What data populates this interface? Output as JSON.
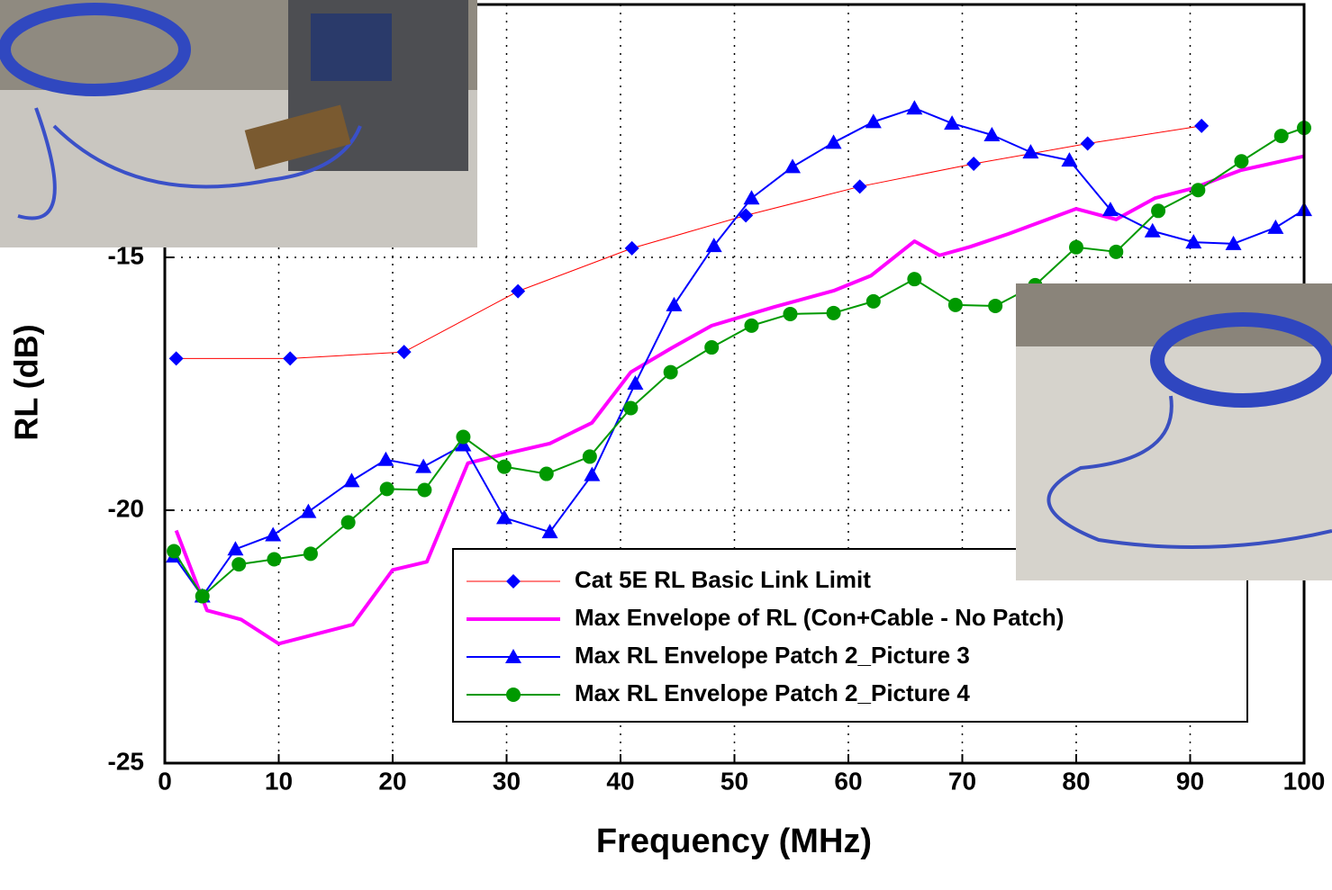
{
  "chart_data": {
    "type": "line",
    "x_label": "Frequency (MHz)",
    "y_label": "RL (dB)",
    "xlim": [
      0,
      100
    ],
    "xticks": [
      0,
      10,
      20,
      30,
      40,
      50,
      60,
      70,
      80,
      90,
      100
    ],
    "ylim": [
      -25,
      -10
    ],
    "yticks": [
      -25,
      -20,
      -15
    ],
    "grid": true,
    "series": [
      {
        "name": "Cat 5E RL Basic Link Limit",
        "color": "#ff0000",
        "marker": "diamond",
        "marker_color": "#0000ff",
        "line_width": 1,
        "x": [
          1,
          11,
          21,
          31,
          41,
          51,
          61,
          71,
          81,
          91
        ],
        "values": [
          -17.0,
          -17.0,
          -16.87,
          -15.67,
          -14.82,
          -14.17,
          -13.6,
          -13.15,
          -12.75,
          -12.4
        ]
      },
      {
        "name": "Max Envelope of RL (Con+Cable - No Patch)",
        "color": "#ff00ff",
        "marker": "none",
        "line_width": 4,
        "x": [
          1,
          3.7,
          6.7,
          10,
          16.5,
          20,
          23,
          26.6,
          29.8,
          33.8,
          37.5,
          40.9,
          44.5,
          48,
          53.5,
          58.7,
          62,
          65.8,
          68,
          70.7,
          74,
          80,
          83.5,
          86.9,
          90.3,
          94.4,
          100
        ],
        "values": [
          -20.4,
          -21.98,
          -22.16,
          -22.64,
          -22.26,
          -21.18,
          -21.02,
          -19.07,
          -18.89,
          -18.68,
          -18.27,
          -17.27,
          -16.79,
          -16.35,
          -15.98,
          -15.66,
          -15.36,
          -14.68,
          -14.96,
          -14.79,
          -14.54,
          -14.04,
          -14.25,
          -13.83,
          -13.63,
          -13.28,
          -13.0
        ]
      },
      {
        "name": "Max RL Envelope Patch 2_Picture 3",
        "color": "#0000ff",
        "marker": "triangle",
        "marker_color": "#0000ff",
        "line_width": 2,
        "x": [
          0.8,
          3.3,
          6.2,
          9.5,
          12.6,
          16.4,
          19.4,
          22.7,
          26.2,
          29.8,
          33.8,
          37.5,
          41.3,
          44.7,
          48.2,
          51.5,
          55.1,
          58.7,
          62.2,
          65.8,
          69.1,
          72.6,
          76,
          79.4,
          83,
          86.7,
          90.3,
          93.8,
          97.5,
          100
        ],
        "values": [
          -20.91,
          -21.7,
          -20.77,
          -20.49,
          -20.03,
          -19.42,
          -19.0,
          -19.14,
          -18.71,
          -20.15,
          -20.43,
          -19.3,
          -17.49,
          -15.94,
          -14.77,
          -13.83,
          -13.21,
          -12.73,
          -12.32,
          -12.05,
          -12.35,
          -12.58,
          -12.92,
          -13.08,
          -14.06,
          -14.48,
          -14.7,
          -14.73,
          -14.41,
          -14.06
        ]
      },
      {
        "name": "Max RL Envelope Patch 2_Picture 4",
        "color": "#009900",
        "marker": "circle",
        "marker_color": "#009900",
        "line_width": 2,
        "x": [
          0.8,
          3.3,
          6.5,
          9.6,
          12.8,
          16.1,
          19.5,
          22.8,
          26.2,
          29.8,
          33.5,
          37.3,
          40.9,
          44.4,
          48,
          51.5,
          54.9,
          58.7,
          62.2,
          65.8,
          69.4,
          72.9,
          76.4,
          80,
          83.5,
          87.2,
          90.7,
          94.5,
          98,
          100
        ],
        "values": [
          -20.81,
          -21.7,
          -21.07,
          -20.97,
          -20.86,
          -20.24,
          -19.58,
          -19.6,
          -18.55,
          -19.14,
          -19.28,
          -18.94,
          -17.98,
          -17.27,
          -16.78,
          -16.35,
          -16.12,
          -16.1,
          -15.87,
          -15.43,
          -15.94,
          -15.96,
          -15.55,
          -14.8,
          -14.89,
          -14.08,
          -13.67,
          -13.1,
          -12.6,
          -12.44
        ]
      }
    ]
  }
}
